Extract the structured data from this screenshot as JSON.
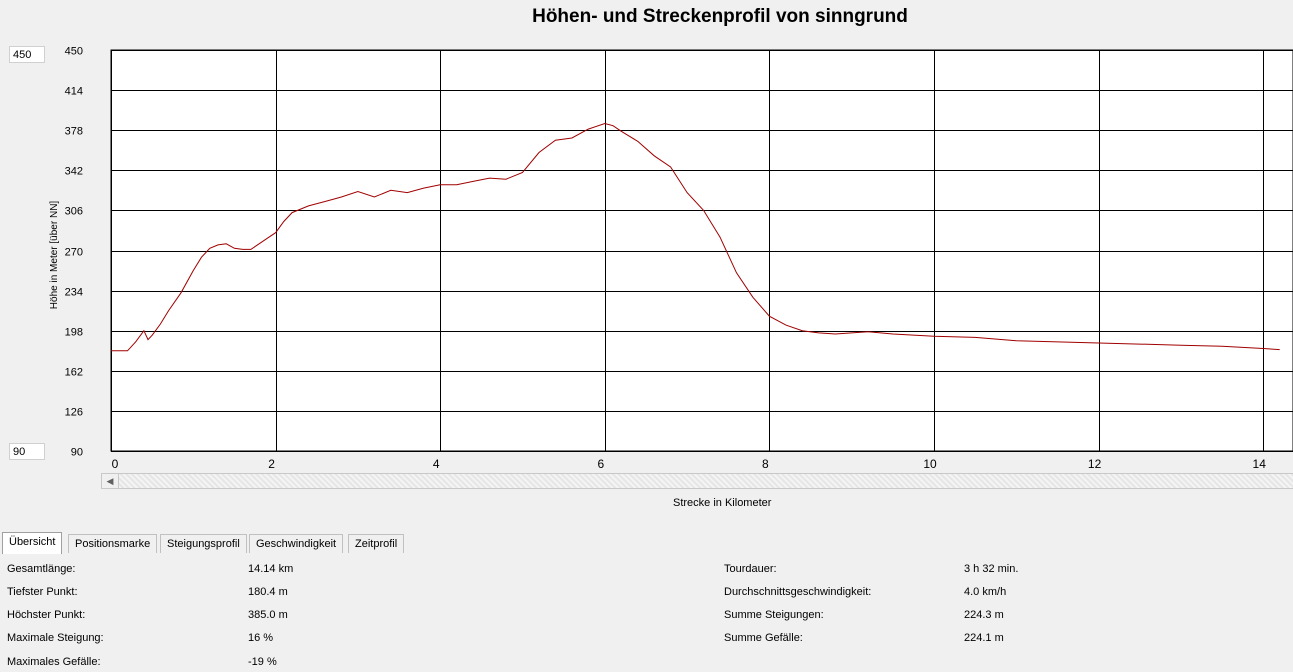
{
  "chart_data": {
    "type": "line",
    "title": "Höhen- und Streckenprofil von sinngrund",
    "xlabel": "Strecke in Kilometer",
    "ylabel": "Höhe in Meter [über NN]",
    "xlim": [
      0,
      14.3
    ],
    "ylim": [
      90,
      450
    ],
    "x_ticks": [
      0,
      2,
      4,
      6,
      8,
      10,
      12,
      14
    ],
    "y_ticks": [
      90,
      126,
      162,
      198,
      234,
      270,
      306,
      342,
      378,
      414,
      450
    ],
    "grid": true,
    "line_color": "#a00000",
    "series": [
      {
        "x": [
          0,
          0.2,
          0.3,
          0.4,
          0.45,
          0.5,
          0.6,
          0.7,
          0.85,
          1.0,
          1.1,
          1.2,
          1.3,
          1.4,
          1.5,
          1.6,
          1.7,
          1.8,
          1.9,
          2.0,
          2.1,
          2.2,
          2.4,
          2.6,
          2.8,
          3.0,
          3.2,
          3.4,
          3.6,
          3.8,
          4.0,
          4.2,
          4.4,
          4.6,
          4.8,
          5.0,
          5.2,
          5.4,
          5.6,
          5.8,
          6.0,
          6.1,
          6.2,
          6.4,
          6.6,
          6.8,
          7.0,
          7.2,
          7.4,
          7.6,
          7.8,
          8.0,
          8.2,
          8.4,
          8.6,
          8.8,
          9.0,
          9.2,
          9.5,
          10.0,
          10.5,
          11.0,
          12.0,
          13.0,
          13.5,
          14.0,
          14.2
        ],
        "y": [
          180,
          180,
          188,
          198,
          190,
          194,
          204,
          216,
          232,
          252,
          264,
          272,
          275,
          276,
          272,
          271,
          271,
          276,
          281,
          286,
          296,
          304,
          310,
          314,
          318,
          323,
          318,
          324,
          322,
          326,
          329,
          329,
          332,
          335,
          334,
          340,
          358,
          369,
          371,
          379,
          384,
          382,
          377,
          368,
          355,
          345,
          322,
          306,
          282,
          250,
          228,
          211,
          203,
          198,
          196,
          195,
          196,
          197,
          195,
          193,
          192,
          189,
          187,
          185,
          184,
          182,
          181
        ]
      }
    ]
  },
  "y_range_inputs": {
    "max": "450",
    "min": "90"
  },
  "tabs": [
    "Übersicht",
    "Positionsmarke",
    "Steigungsprofil",
    "Geschwindigkeit",
    "Zeitprofil"
  ],
  "summary_left": [
    {
      "label": "Gesamtlänge:",
      "value": "14.14 km"
    },
    {
      "label": "Tiefster Punkt:",
      "value": "180.4 m"
    },
    {
      "label": "Höchster Punkt:",
      "value": "385.0 m"
    },
    {
      "label": "Maximale Steigung:",
      "value": "16 %"
    },
    {
      "label": "Maximales Gefälle:",
      "value": "-19 %"
    }
  ],
  "summary_right": [
    {
      "label": "Tourdauer:",
      "value": "3 h 32 min."
    },
    {
      "label": "Durchschnittsgeschwindigkeit:",
      "value": "4.0 km/h"
    },
    {
      "label": "Summe Steigungen:",
      "value": "224.3 m"
    },
    {
      "label": "Summe Gefälle:",
      "value": "224.1 m"
    }
  ]
}
